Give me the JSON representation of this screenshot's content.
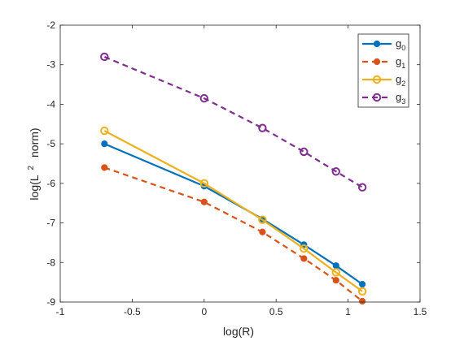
{
  "chart_data": {
    "type": "line",
    "title": "",
    "xlabel": "log(R)",
    "ylabel_parts": [
      "log(L",
      "2",
      " norm)"
    ],
    "xlim": [
      -1,
      1.5
    ],
    "ylim": [
      -9,
      -2
    ],
    "xticks": [
      -1,
      -0.5,
      0,
      0.5,
      1,
      1.5
    ],
    "yticks": [
      -9,
      -8,
      -7,
      -6,
      -5,
      -4,
      -3,
      -2
    ],
    "xtick_labels": [
      "-1",
      "-0.5",
      "0",
      "0.5",
      "1",
      "1.5"
    ],
    "ytick_labels": [
      "-9",
      "-8",
      "-7",
      "-6",
      "-5",
      "-4",
      "-3",
      "-2"
    ],
    "grid": false,
    "legend_position": "top-right",
    "series": [
      {
        "name": "g",
        "sub": "0",
        "color": "#0072bd",
        "dash": "solid",
        "marker": "filled-circle",
        "x": [
          -0.693,
          0.0,
          0.405,
          0.693,
          0.916,
          1.099
        ],
        "y": [
          -5.0,
          -6.07,
          -6.9,
          -7.55,
          -8.08,
          -8.55
        ]
      },
      {
        "name": "g",
        "sub": "1",
        "color": "#d95319",
        "dash": "dashed",
        "marker": "filled-circle",
        "x": [
          -0.693,
          0.0,
          0.405,
          0.693,
          0.916,
          1.099
        ],
        "y": [
          -5.6,
          -6.47,
          -7.23,
          -7.9,
          -8.45,
          -8.98
        ]
      },
      {
        "name": "g",
        "sub": "2",
        "color": "#edb120",
        "dash": "solid",
        "marker": "open-circle",
        "x": [
          -0.693,
          0.0,
          0.405,
          0.693,
          0.916,
          1.099
        ],
        "y": [
          -4.67,
          -6.0,
          -6.92,
          -7.65,
          -8.25,
          -8.73
        ]
      },
      {
        "name": "g",
        "sub": "3",
        "color": "#7e2f8e",
        "dash": "dashed",
        "marker": "open-circle",
        "x": [
          -0.693,
          0.0,
          0.405,
          0.693,
          0.916,
          1.099
        ],
        "y": [
          -2.8,
          -3.85,
          -4.6,
          -5.2,
          -5.7,
          -6.1
        ]
      }
    ]
  }
}
